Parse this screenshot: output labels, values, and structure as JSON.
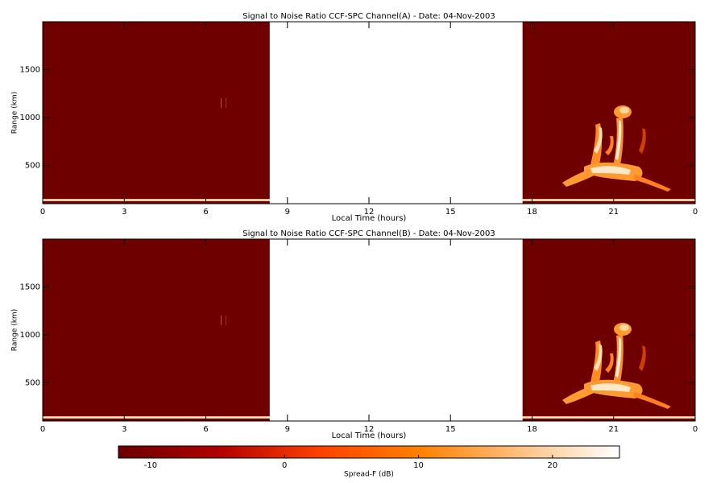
{
  "chart_data": [
    {
      "type": "heatmap",
      "title": "Signal to Noise Ratio CCF-SPC Channel(A) - Date: 04-Nov-2003",
      "xlabel": "Local Time (hours)",
      "ylabel": "Range (km)",
      "xlim": [
        0,
        24
      ],
      "xticks": [
        0,
        3,
        6,
        9,
        12,
        15,
        18,
        21,
        {
          "value": 24,
          "label": "0"
        }
      ],
      "ylim": [
        100,
        2000
      ],
      "yticks": [
        500,
        1000,
        1500
      ],
      "no_data": [
        8.35,
        17.65
      ]
    },
    {
      "type": "heatmap",
      "title": "Signal to Noise Ratio CCF-SPC Channel(B) - Date: 04-Nov-2003",
      "xlabel": "Local Time (hours)",
      "ylabel": "Range (km)",
      "xlim": [
        0,
        24
      ],
      "xticks": [
        0,
        3,
        6,
        9,
        12,
        15,
        18,
        21,
        {
          "value": 24,
          "label": "0"
        }
      ],
      "ylim": [
        100,
        2000
      ],
      "yticks": [
        500,
        1000,
        1500
      ],
      "no_data": [
        8.35,
        17.65
      ]
    }
  ],
  "colorbar": {
    "label": "Spread-F (dB)",
    "zlim": [
      -12.4,
      25
    ],
    "ticks": [
      -10,
      0,
      10,
      20
    ],
    "colors": [
      "#6a0000",
      "#b00000",
      "#ff4000",
      "#ff8000",
      "#ffc080",
      "#ffffff"
    ]
  }
}
